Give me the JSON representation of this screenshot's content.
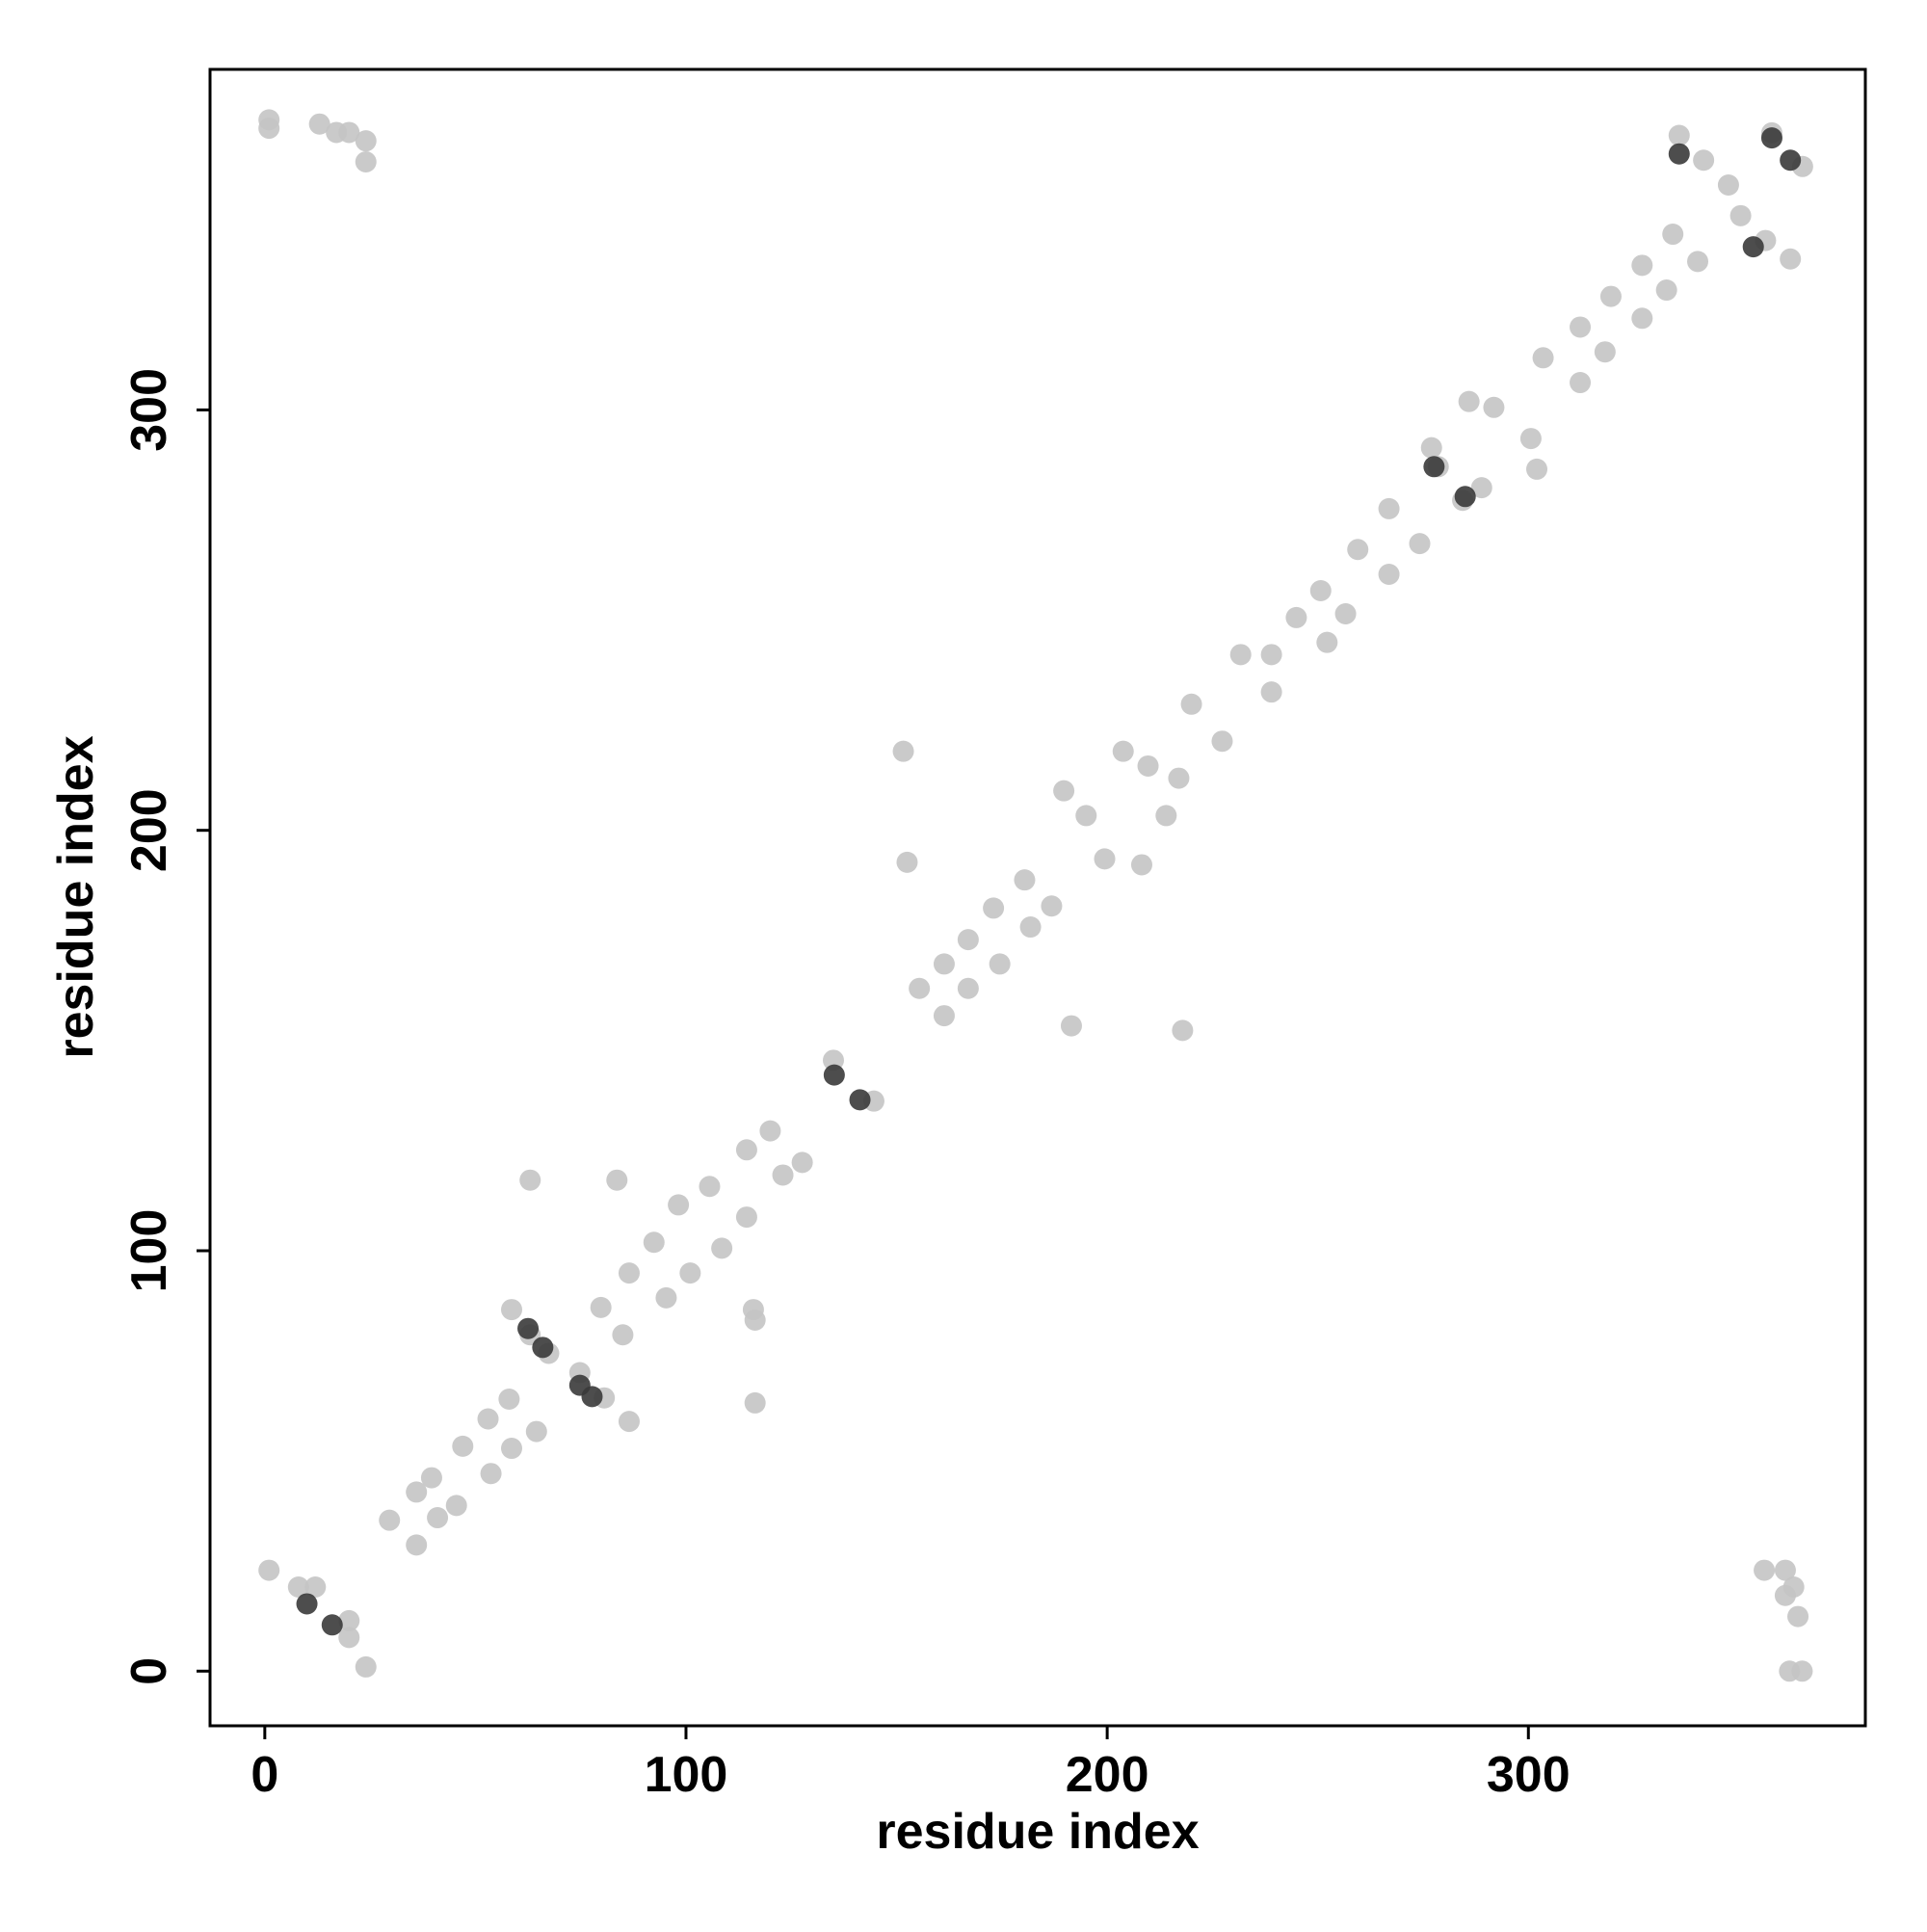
{
  "chart_data": {
    "type": "scatter",
    "x_label": "residue index",
    "y_label": "residue index",
    "xlim": [
      -13,
      380
    ],
    "ylim": [
      -13,
      381
    ],
    "xticks": [
      0,
      100,
      200,
      300
    ],
    "yticks": [
      0,
      100,
      200,
      300
    ],
    "series": [
      {
        "color": "#c4c4c4",
        "x": [
          1,
          1,
          13,
          17,
          20,
          24,
          24,
          356,
          361,
          363,
          361,
          364,
          362,
          365,
          1,
          8,
          12,
          20,
          20,
          24,
          29.6,
          36,
          39.6,
          36,
          41,
          45.5,
          47,
          53,
          58,
          53.7,
          58.6,
          64.5,
          58.6,
          63,
          67.4,
          74.8,
          80.6,
          86.5,
          63,
          83.6,
          116,
          116.4,
          116.4,
          79.8,
          85,
          86.5,
          92.4,
          98.2,
          105.6,
          114.4,
          120,
          95.3,
          101,
          108.5,
          114.4,
          123,
          127.6,
          144.6,
          135,
          151.6,
          152.5,
          191.5,
          217.9,
          155.4,
          161.3,
          167,
          173,
          180.4,
          161.3,
          167,
          174.5,
          181.8,
          186.8,
          189.7,
          195,
          203.8,
          209.7,
          199.4,
          208.2,
          214,
          217,
          220,
          231.7,
          239,
          227.3,
          239,
          244.9,
          250.7,
          252.2,
          256.6,
          259.5,
          266.9,
          266.9,
          274.2,
          277,
          278.6,
          285.9,
          291.8,
          284.4,
          288.9,
          300.6,
          302,
          303.5,
          312.3,
          319.6,
          312.3,
          318.2,
          327,
          327,
          334.3,
          332.8,
          340.2,
          335.8,
          341.6,
          347.5,
          357.8,
          350.4,
          356.3,
          362.2,
          365.1
        ],
        "y": [
          369,
          367,
          368,
          366,
          366,
          364,
          359,
          24,
          24,
          20,
          18,
          13,
          0,
          0,
          24,
          20,
          20,
          12,
          8,
          1,
          35.9,
          42.6,
          46,
          30,
          36.5,
          39.4,
          53.5,
          60,
          64.7,
          47,
          53,
          57,
          86,
          80,
          75.6,
          71,
          65,
          59.4,
          116.8,
          116.8,
          86,
          83.5,
          63.8,
          86.5,
          80,
          94.7,
          102,
          110.9,
          115.3,
          124,
          128.5,
          88.8,
          94.7,
          100.6,
          108,
          118,
          121,
          135.6,
          145.3,
          218.8,
          192.4,
          153.5,
          152.4,
          162.4,
          168.2,
          174,
          181.5,
          188.2,
          155.9,
          162.4,
          168.2,
          177,
          182,
          209.4,
          203.5,
          218.8,
          215.3,
          193.2,
          191.8,
          203.5,
          212.4,
          230,
          241.8,
          241.8,
          221.2,
          232.9,
          250.6,
          257,
          244.7,
          251.5,
          266.8,
          276.5,
          260.9,
          268.2,
          291,
          286.5,
          302,
          300.6,
          278.5,
          281.5,
          293.2,
          285.9,
          312.4,
          319.7,
          327,
          306.5,
          313.8,
          321.8,
          334.4,
          341.8,
          328.5,
          335.3,
          365.3,
          359.4,
          353.5,
          365.9,
          346.2,
          340.3,
          335.9,
          357.9
        ]
      },
      {
        "color": "#3a3a3a",
        "x": [
          10,
          16,
          62.5,
          66,
          77.7,
          74.8,
          135.2,
          141.3,
          277.6,
          285,
          335.8,
          353.4,
          357.8,
          362.2
        ],
        "y": [
          16,
          11,
          81.5,
          77,
          65.3,
          68,
          141.8,
          135.9,
          286.5,
          279.4,
          360.9,
          338.8,
          364.7,
          359.4
        ]
      }
    ]
  }
}
